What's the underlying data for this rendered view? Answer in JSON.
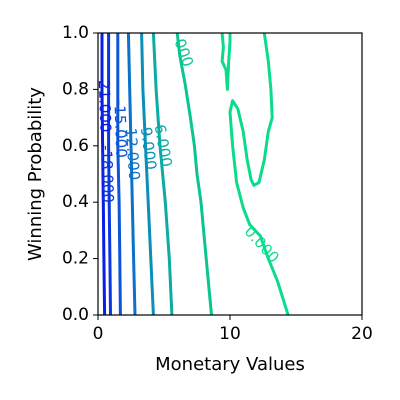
{
  "chart_data": {
    "type": "contour",
    "title": "",
    "xlabel": "Monetary Values",
    "ylabel": "Winning Probability",
    "xlim": [
      0,
      20
    ],
    "ylim": [
      0,
      1
    ],
    "xticks": [
      {
        "value": 0,
        "label": "0"
      },
      {
        "value": 10,
        "label": "10"
      },
      {
        "value": 20,
        "label": "20"
      }
    ],
    "yticks": [
      {
        "value": 0.0,
        "label": "0.0"
      },
      {
        "value": 0.2,
        "label": "0.2"
      },
      {
        "value": 0.4,
        "label": "0.4"
      },
      {
        "value": 0.6,
        "label": "0.6"
      },
      {
        "value": 0.8,
        "label": "0.8"
      },
      {
        "value": 1.0,
        "label": "1.0"
      }
    ],
    "grid": false,
    "levels": [
      {
        "level": -21,
        "color": "#0a1ee6",
        "points": [
          [
            0.3,
            1.0
          ],
          [
            0.3,
            0.8
          ],
          [
            0.35,
            0.6
          ],
          [
            0.4,
            0.4
          ],
          [
            0.45,
            0.2
          ],
          [
            0.5,
            0.0
          ]
        ]
      },
      {
        "level": -18,
        "color": "#0a37e0",
        "points": [
          [
            0.8,
            1.0
          ],
          [
            0.8,
            0.8
          ],
          [
            0.8,
            0.6
          ],
          [
            0.85,
            0.4
          ],
          [
            0.9,
            0.2
          ],
          [
            0.95,
            0.0
          ]
        ]
      },
      {
        "level": -15,
        "color": "#0a55d8",
        "points": [
          [
            1.5,
            1.0
          ],
          [
            1.5,
            0.8
          ],
          [
            1.5,
            0.6
          ],
          [
            1.6,
            0.4
          ],
          [
            1.65,
            0.2
          ],
          [
            1.7,
            0.0
          ]
        ]
      },
      {
        "level": -12,
        "color": "#0a72c8",
        "points": [
          [
            2.3,
            1.0
          ],
          [
            2.4,
            0.8
          ],
          [
            2.5,
            0.6
          ],
          [
            2.6,
            0.4
          ],
          [
            2.7,
            0.2
          ],
          [
            2.8,
            0.0
          ]
        ]
      },
      {
        "level": -9,
        "color": "#0a8fb8",
        "points": [
          [
            3.3,
            1.0
          ],
          [
            3.4,
            0.8
          ],
          [
            3.6,
            0.6
          ],
          [
            3.8,
            0.4
          ],
          [
            4.0,
            0.2
          ],
          [
            4.2,
            0.0
          ]
        ]
      },
      {
        "level": -6,
        "color": "#0aaca5",
        "points": [
          [
            4.2,
            1.0
          ],
          [
            4.4,
            0.8
          ],
          [
            4.7,
            0.6
          ],
          [
            5.1,
            0.4
          ],
          [
            5.4,
            0.2
          ],
          [
            5.6,
            0.0
          ]
        ]
      },
      {
        "level": -3,
        "color": "#0ac590",
        "points": [
          [
            6.0,
            1.0
          ],
          [
            6.2,
            0.92
          ],
          [
            6.6,
            0.82
          ],
          [
            7.0,
            0.7
          ],
          [
            7.3,
            0.6
          ],
          [
            7.5,
            0.5
          ],
          [
            7.8,
            0.4
          ],
          [
            8.2,
            0.2
          ],
          [
            8.6,
            0.0
          ]
        ]
      },
      {
        "level": 0,
        "color": "#0adc8c",
        "points": [
          [
            9.4,
            1.0
          ],
          [
            9.5,
            0.95
          ],
          [
            9.4,
            0.9
          ],
          [
            9.7,
            0.87
          ],
          [
            9.8,
            0.8
          ],
          [
            9.9,
            0.9
          ],
          [
            10.0,
            0.97
          ],
          [
            10.0,
            1.0
          ]
        ]
      },
      {
        "level": 0,
        "color": "#0adc8c",
        "points": [
          [
            12.6,
            1.0
          ],
          [
            12.9,
            0.9
          ],
          [
            13.1,
            0.8
          ],
          [
            13.2,
            0.7
          ],
          [
            12.9,
            0.65
          ],
          [
            12.6,
            0.55
          ],
          [
            12.2,
            0.47
          ],
          [
            11.8,
            0.46
          ],
          [
            11.6,
            0.48
          ],
          [
            11.3,
            0.55
          ],
          [
            11.0,
            0.65
          ],
          [
            10.6,
            0.73
          ],
          [
            10.2,
            0.76
          ],
          [
            10.0,
            0.72
          ],
          [
            10.2,
            0.6
          ],
          [
            10.5,
            0.47
          ],
          [
            11.0,
            0.38
          ],
          [
            11.5,
            0.32
          ],
          [
            12.3,
            0.28
          ],
          [
            12.9,
            0.2
          ],
          [
            13.6,
            0.12
          ],
          [
            14.4,
            0.0
          ]
        ]
      }
    ],
    "contour_labels": [
      {
        "text": "-21.000",
        "x": 0.5,
        "y": 0.75,
        "angle": 88,
        "color": "#0a1ee6"
      },
      {
        "text": "-18.000",
        "x": 0.7,
        "y": 0.5,
        "angle": 88,
        "color": "#0a37e0"
      },
      {
        "text": "-15.000",
        "x": 1.7,
        "y": 0.66,
        "angle": 88,
        "color": "#0a55d8"
      },
      {
        "text": "-12.000",
        "x": 2.6,
        "y": 0.58,
        "angle": 86,
        "color": "#0a72c8"
      },
      {
        "text": "-9.000",
        "x": 3.8,
        "y": 0.6,
        "angle": 83,
        "color": "#0a8fb8"
      },
      {
        "text": "-6.000",
        "x": 4.9,
        "y": 0.61,
        "angle": 80,
        "color": "#0aaca5"
      },
      {
        "text": "000",
        "x": 6.5,
        "y": 0.93,
        "angle": 70,
        "color": "#0ac590"
      },
      {
        "text": "0.000",
        "x": 12.4,
        "y": 0.25,
        "angle": 48,
        "color": "#0adc8c"
      }
    ]
  }
}
